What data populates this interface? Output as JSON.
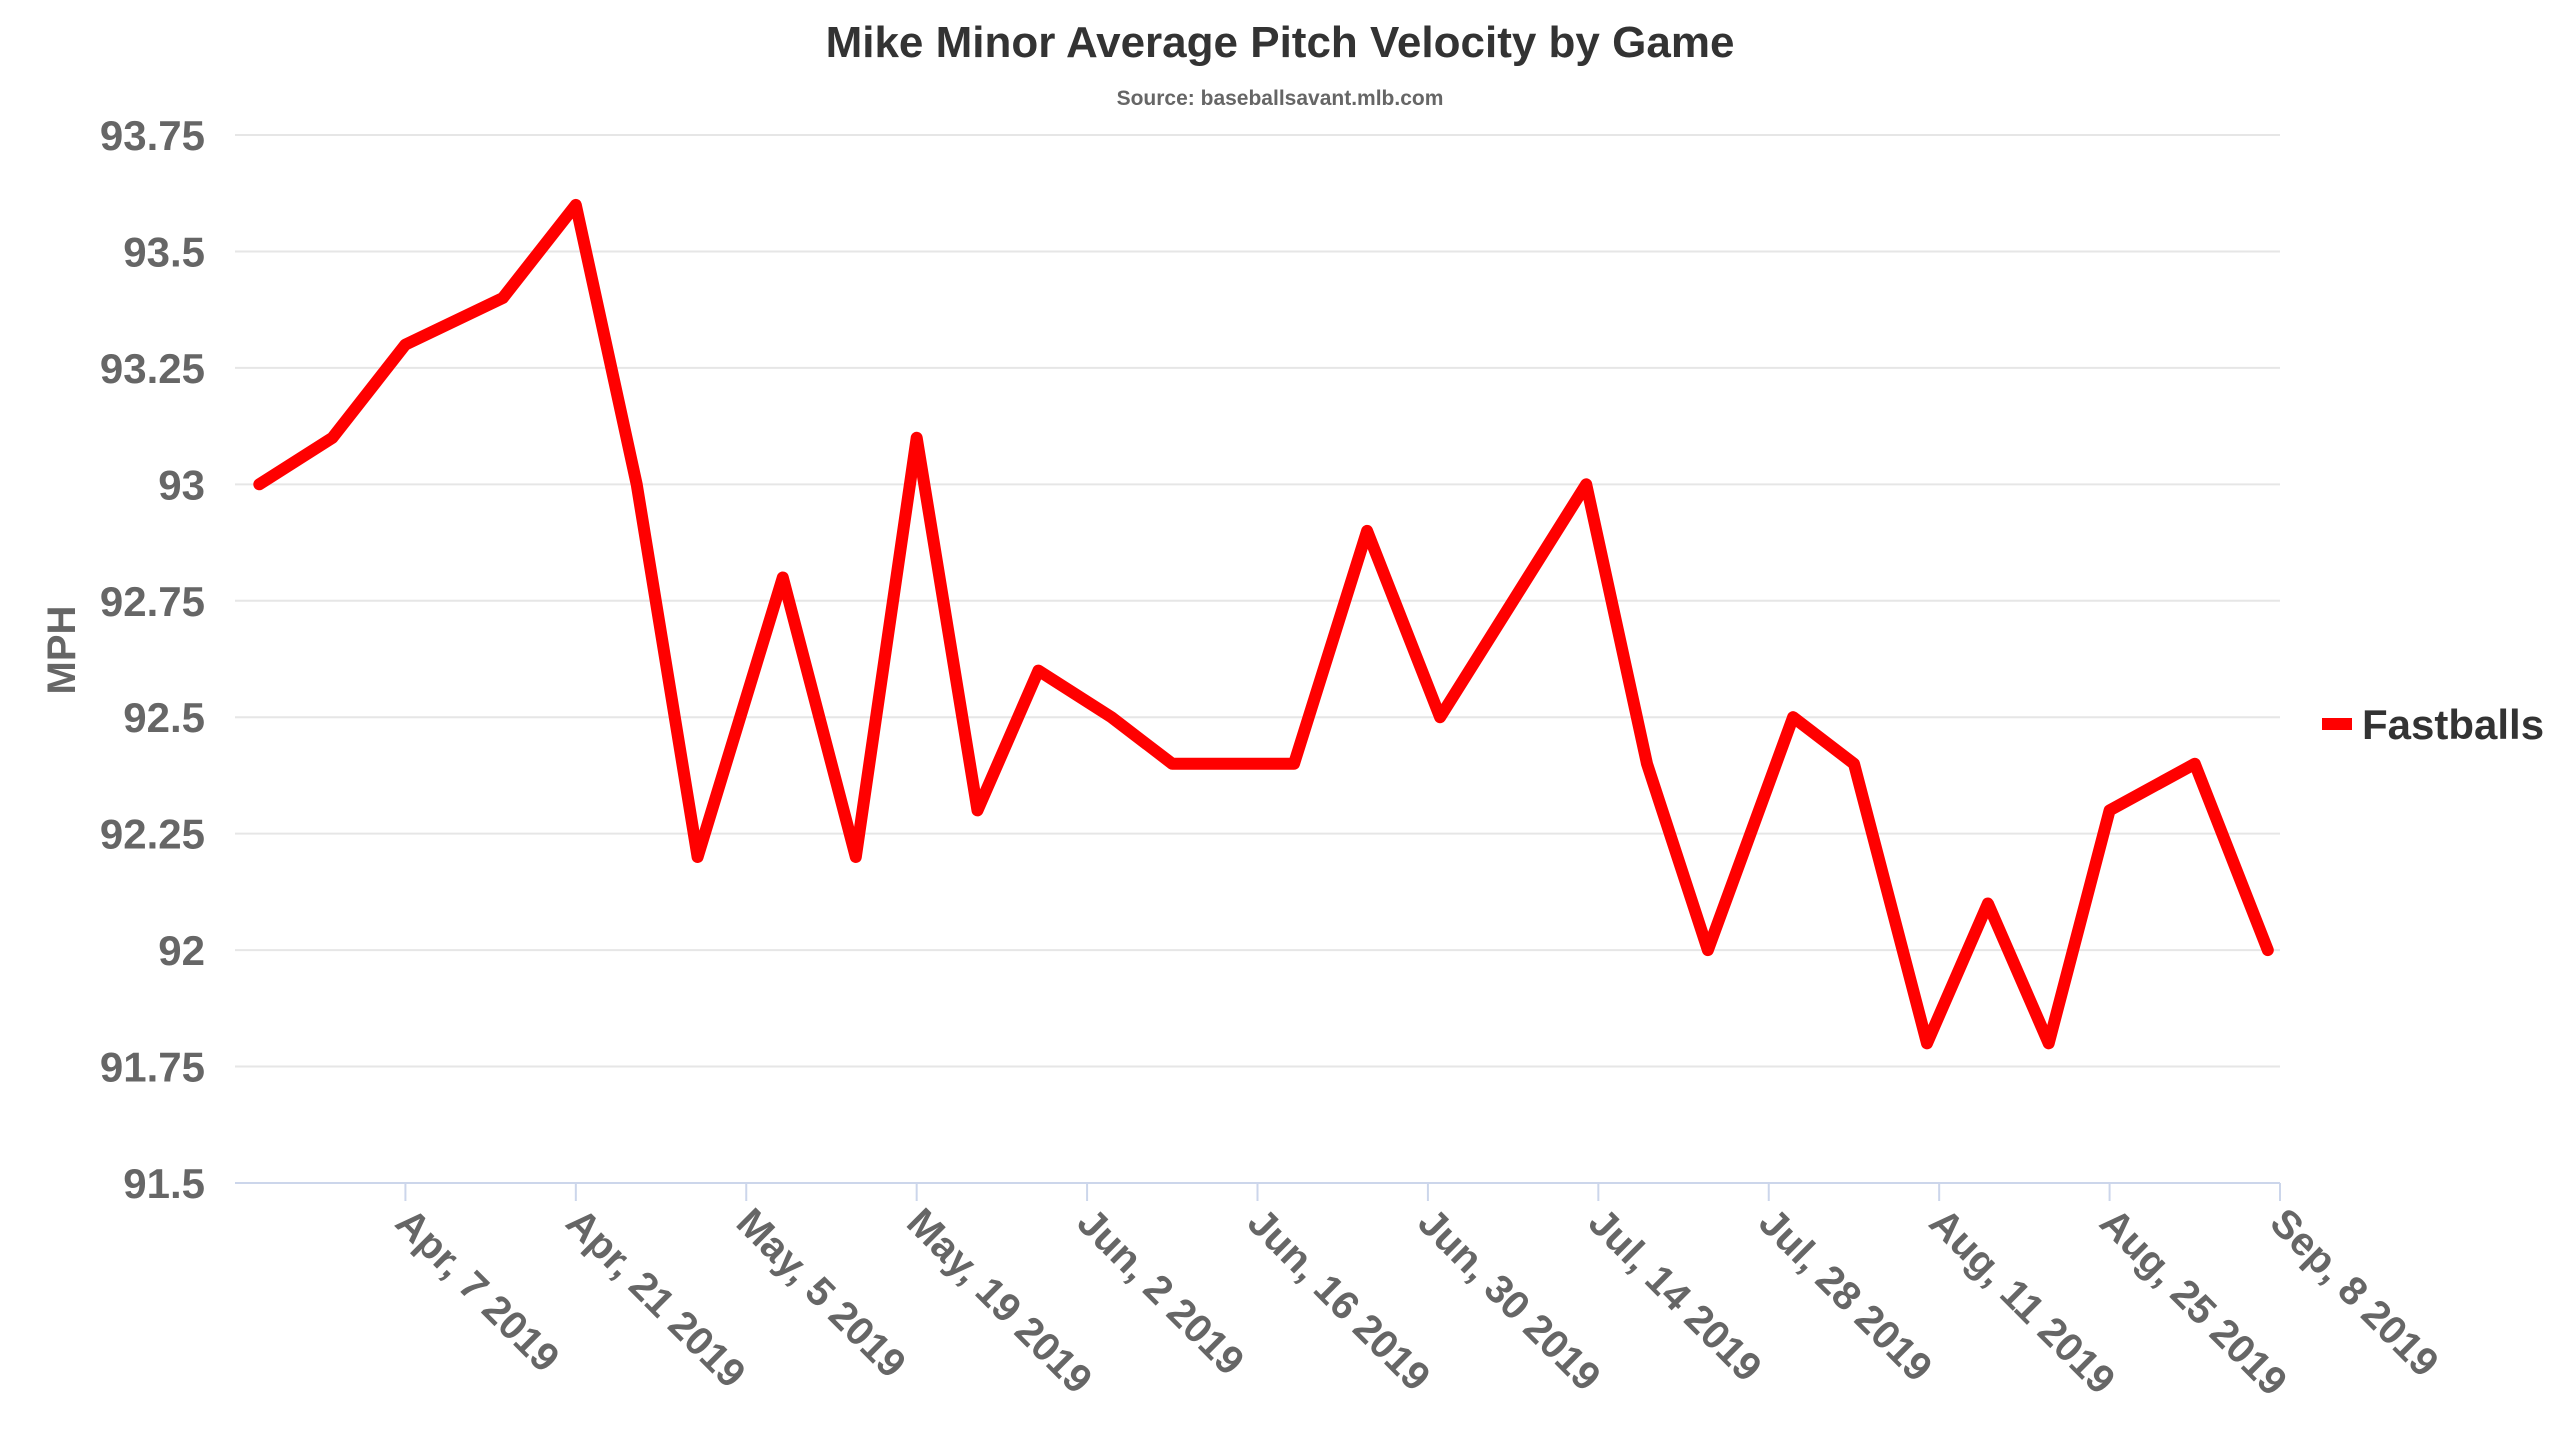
{
  "chart_data": {
    "type": "line",
    "title": "Mike Minor Average Pitch Velocity by Game",
    "subtitle": "Source: baseballsavant.mlb.com",
    "ylabel": "MPH",
    "xlabel": "",
    "ylim": [
      91.5,
      93.75
    ],
    "yticks": [
      "91.5",
      "91.75",
      "92",
      "92.25",
      "92.5",
      "92.75",
      "93",
      "93.25",
      "93.5",
      "93.75"
    ],
    "ytick_values": [
      91.5,
      91.75,
      92,
      92.25,
      92.5,
      92.75,
      93,
      93.25,
      93.5,
      93.75
    ],
    "xlim": [
      "2019-03-24",
      "2019-09-08"
    ],
    "xticks": [
      "Apr, 7 2019",
      "Apr, 21 2019",
      "May, 5 2019",
      "May, 19 2019",
      "Jun, 2 2019",
      "Jun, 16 2019",
      "Jun, 30 2019",
      "Jul, 14 2019",
      "Jul, 28 2019",
      "Aug, 11 2019",
      "Aug, 25 2019",
      "Sep, 8 2019"
    ],
    "xtick_dates": [
      "2019-04-07",
      "2019-04-21",
      "2019-05-05",
      "2019-05-19",
      "2019-06-02",
      "2019-06-16",
      "2019-06-30",
      "2019-07-14",
      "2019-07-28",
      "2019-08-11",
      "2019-08-25",
      "2019-09-08"
    ],
    "grid": true,
    "legend": "right",
    "series": [
      {
        "name": "Fastballs",
        "color": "#ff0000",
        "points": [
          {
            "x": "2019-03-26",
            "y": 93.0
          },
          {
            "x": "2019-04-01",
            "y": 93.1
          },
          {
            "x": "2019-04-07",
            "y": 93.3
          },
          {
            "x": "2019-04-15",
            "y": 93.4
          },
          {
            "x": "2019-04-21",
            "y": 93.6
          },
          {
            "x": "2019-04-26",
            "y": 93.0
          },
          {
            "x": "2019-05-01",
            "y": 92.2
          },
          {
            "x": "2019-05-08",
            "y": 92.8
          },
          {
            "x": "2019-05-14",
            "y": 92.2
          },
          {
            "x": "2019-05-19",
            "y": 93.1
          },
          {
            "x": "2019-05-24",
            "y": 92.3
          },
          {
            "x": "2019-05-29",
            "y": 92.6
          },
          {
            "x": "2019-06-04",
            "y": 92.5
          },
          {
            "x": "2019-06-09",
            "y": 92.4
          },
          {
            "x": "2019-06-19",
            "y": 92.4
          },
          {
            "x": "2019-06-25",
            "y": 92.9
          },
          {
            "x": "2019-07-01",
            "y": 92.5
          },
          {
            "x": "2019-07-07",
            "y": 92.75
          },
          {
            "x": "2019-07-13",
            "y": 93.0
          },
          {
            "x": "2019-07-18",
            "y": 92.4
          },
          {
            "x": "2019-07-23",
            "y": 92.0
          },
          {
            "x": "2019-07-30",
            "y": 92.5
          },
          {
            "x": "2019-08-04",
            "y": 92.4
          },
          {
            "x": "2019-08-10",
            "y": 91.8
          },
          {
            "x": "2019-08-15",
            "y": 92.1
          },
          {
            "x": "2019-08-20",
            "y": 91.8
          },
          {
            "x": "2019-08-25",
            "y": 92.3
          },
          {
            "x": "2019-09-01",
            "y": 92.4
          },
          {
            "x": "2019-09-07",
            "y": 92.0
          }
        ]
      }
    ]
  }
}
